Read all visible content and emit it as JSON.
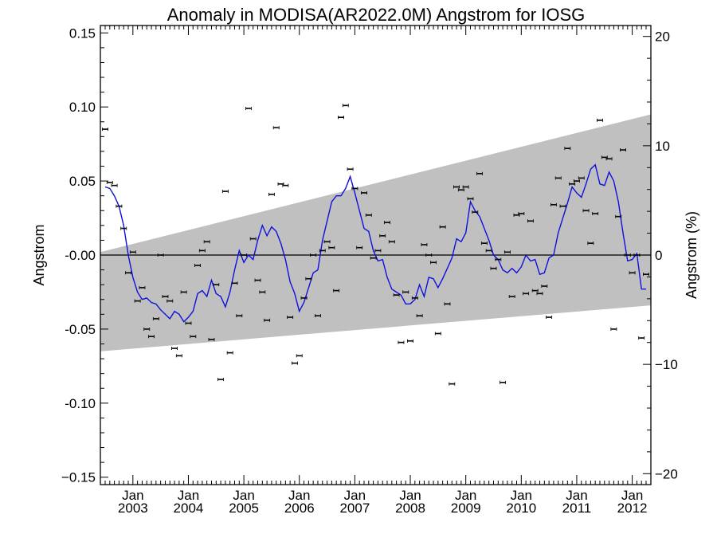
{
  "chart_data": {
    "type": "scatter",
    "title": "Anomaly in MODISA(AR2022.0M) Angstrom for IOSG",
    "ylabel": "Angstrom",
    "ylabel_right": "Angstrom (%)",
    "ylim": [
      -0.155,
      0.155
    ],
    "ylim_right": [
      -21,
      21
    ],
    "yticks": [
      {
        "value": 0.15,
        "label": "0.15"
      },
      {
        "value": 0.1,
        "label": "0.10"
      },
      {
        "value": 0.05,
        "label": "0.05"
      },
      {
        "value": 0.0,
        "label": "-0.00"
      },
      {
        "value": -0.05,
        "label": "-0.05"
      },
      {
        "value": -0.1,
        "label": "-0.10"
      },
      {
        "value": -0.15,
        "label": "−0.15"
      }
    ],
    "yticks_right": [
      {
        "value": 20,
        "label": "20"
      },
      {
        "value": 10,
        "label": "10"
      },
      {
        "value": 0,
        "label": "0"
      },
      {
        "value": -10,
        "label": "−10"
      },
      {
        "value": -20,
        "label": "−20"
      }
    ],
    "xlim": [
      "2002-07",
      "2012-04"
    ],
    "xticks": [
      {
        "month": "Jan",
        "year": "2003"
      },
      {
        "month": "Jan",
        "year": "2004"
      },
      {
        "month": "Jan",
        "year": "2005"
      },
      {
        "month": "Jan",
        "year": "2006"
      },
      {
        "month": "Jan",
        "year": "2007"
      },
      {
        "month": "Jan",
        "year": "2008"
      },
      {
        "month": "Jan",
        "year": "2009"
      },
      {
        "month": "Jan",
        "year": "2010"
      },
      {
        "month": "Jan",
        "year": "2011"
      },
      {
        "month": "Jan",
        "year": "2012"
      }
    ],
    "band": {
      "color": "#c0c0c0",
      "upper": [
        [
          "2002-07",
          0.002
        ],
        [
          "2012-04",
          0.095
        ]
      ],
      "lower": [
        [
          "2002-07",
          -0.065
        ],
        [
          "2012-04",
          -0.034
        ]
      ]
    },
    "zero_line": 0.0,
    "monthly_anomaly": {
      "color": "#000000",
      "points": [
        [
          "2002-07",
          0.085
        ],
        [
          "2002-08",
          0.049
        ],
        [
          "2002-09",
          0.047
        ],
        [
          "2002-10",
          0.033
        ],
        [
          "2002-11",
          0.018
        ],
        [
          "2002-12",
          -0.012
        ],
        [
          "2003-01",
          0.002
        ],
        [
          "2003-02",
          -0.031
        ],
        [
          "2003-03",
          -0.022
        ],
        [
          "2003-04",
          -0.05
        ],
        [
          "2003-05",
          -0.055
        ],
        [
          "2003-06",
          -0.043
        ],
        [
          "2003-07",
          0.0
        ],
        [
          "2003-08",
          -0.028
        ],
        [
          "2003-09",
          -0.031
        ],
        [
          "2003-10",
          -0.063
        ],
        [
          "2003-11",
          -0.068
        ],
        [
          "2003-12",
          -0.025
        ],
        [
          "2004-01",
          -0.046
        ],
        [
          "2004-02",
          -0.055
        ],
        [
          "2004-03",
          -0.007
        ],
        [
          "2004-04",
          0.003
        ],
        [
          "2004-05",
          0.009
        ],
        [
          "2004-06",
          -0.057
        ],
        [
          "2004-07",
          -0.02
        ],
        [
          "2004-08",
          -0.084
        ],
        [
          "2004-09",
          0.043
        ],
        [
          "2004-10",
          -0.066
        ],
        [
          "2004-11",
          -0.019
        ],
        [
          "2004-12",
          -0.041
        ],
        [
          "2005-01",
          0.0
        ],
        [
          "2005-02",
          0.099
        ],
        [
          "2005-03",
          0.011
        ],
        [
          "2005-04",
          -0.017
        ],
        [
          "2005-05",
          -0.025
        ],
        [
          "2005-06",
          -0.044
        ],
        [
          "2005-07",
          0.041
        ],
        [
          "2005-08",
          0.086
        ],
        [
          "2005-09",
          0.048
        ],
        [
          "2005-10",
          0.047
        ],
        [
          "2005-11",
          -0.042
        ],
        [
          "2005-12",
          -0.073
        ],
        [
          "2006-01",
          -0.068
        ],
        [
          "2006-02",
          -0.029
        ],
        [
          "2006-03",
          -0.016
        ],
        [
          "2006-04",
          0.0
        ],
        [
          "2006-05",
          -0.041
        ],
        [
          "2006-06",
          0.003
        ],
        [
          "2006-07",
          0.009
        ],
        [
          "2006-08",
          0.005
        ],
        [
          "2006-09",
          -0.024
        ],
        [
          "2006-10",
          0.093
        ],
        [
          "2006-11",
          0.101
        ],
        [
          "2006-12",
          0.058
        ],
        [
          "2007-01",
          0.045
        ],
        [
          "2007-02",
          0.005
        ],
        [
          "2007-03",
          0.042
        ],
        [
          "2007-04",
          0.027
        ],
        [
          "2007-05",
          -0.002
        ],
        [
          "2007-06",
          0.003
        ],
        [
          "2007-07",
          0.013
        ],
        [
          "2007-08",
          0.022
        ],
        [
          "2007-09",
          0.009
        ],
        [
          "2007-10",
          -0.027
        ],
        [
          "2007-11",
          -0.059
        ],
        [
          "2007-12",
          -0.025
        ],
        [
          "2008-01",
          -0.058
        ],
        [
          "2008-02",
          -0.029
        ],
        [
          "2008-03",
          -0.041
        ],
        [
          "2008-04",
          0.007
        ],
        [
          "2008-05",
          0.0
        ],
        [
          "2008-06",
          -0.005
        ],
        [
          "2008-07",
          -0.053
        ],
        [
          "2008-08",
          0.019
        ],
        [
          "2008-09",
          -0.033
        ],
        [
          "2008-10",
          -0.087
        ],
        [
          "2008-11",
          0.046
        ],
        [
          "2008-12",
          0.044
        ],
        [
          "2009-01",
          0.046
        ],
        [
          "2009-02",
          0.038
        ],
        [
          "2009-03",
          0.029
        ],
        [
          "2009-04",
          0.055
        ],
        [
          "2009-05",
          0.008
        ],
        [
          "2009-06",
          0.003
        ],
        [
          "2009-07",
          -0.009
        ],
        [
          "2009-08",
          -0.003
        ],
        [
          "2009-09",
          -0.086
        ],
        [
          "2009-10",
          0.002
        ],
        [
          "2009-11",
          -0.028
        ],
        [
          "2009-12",
          0.027
        ],
        [
          "2010-01",
          0.028
        ],
        [
          "2010-02",
          -0.026
        ],
        [
          "2010-03",
          0.023
        ],
        [
          "2010-04",
          -0.024
        ],
        [
          "2010-05",
          -0.026
        ],
        [
          "2010-06",
          -0.021
        ],
        [
          "2010-07",
          -0.042
        ],
        [
          "2010-08",
          0.034
        ],
        [
          "2010-09",
          0.052
        ],
        [
          "2010-10",
          0.033
        ],
        [
          "2010-11",
          0.072
        ],
        [
          "2010-12",
          0.048
        ],
        [
          "2011-01",
          0.05
        ],
        [
          "2011-02",
          0.052
        ],
        [
          "2011-03",
          0.03
        ],
        [
          "2011-04",
          0.008
        ],
        [
          "2011-05",
          0.028
        ],
        [
          "2011-06",
          0.091
        ],
        [
          "2011-07",
          0.066
        ],
        [
          "2011-08",
          0.065
        ],
        [
          "2011-09",
          -0.05
        ],
        [
          "2011-10",
          0.026
        ],
        [
          "2011-11",
          0.071
        ],
        [
          "2011-12",
          0.0
        ],
        [
          "2012-01",
          -0.012
        ],
        [
          "2012-02",
          0.0
        ],
        [
          "2012-03",
          -0.056
        ],
        [
          "2012-04",
          -0.013
        ]
      ]
    },
    "smoothed": {
      "color": "#1010dd",
      "points": [
        [
          "2002-07",
          0.046
        ],
        [
          "2002-08",
          0.045
        ],
        [
          "2002-09",
          0.04
        ],
        [
          "2002-10",
          0.033
        ],
        [
          "2002-11",
          0.02
        ],
        [
          "2002-12",
          0.0
        ],
        [
          "2003-01",
          -0.015
        ],
        [
          "2003-02",
          -0.025
        ],
        [
          "2003-03",
          -0.03
        ],
        [
          "2003-04",
          -0.029
        ],
        [
          "2003-05",
          -0.032
        ],
        [
          "2003-06",
          -0.033
        ],
        [
          "2003-07",
          -0.037
        ],
        [
          "2003-08",
          -0.04
        ],
        [
          "2003-09",
          -0.043
        ],
        [
          "2003-10",
          -0.038
        ],
        [
          "2003-11",
          -0.04
        ],
        [
          "2003-12",
          -0.045
        ],
        [
          "2004-01",
          -0.042
        ],
        [
          "2004-02",
          -0.038
        ],
        [
          "2004-03",
          -0.026
        ],
        [
          "2004-04",
          -0.024
        ],
        [
          "2004-05",
          -0.028
        ],
        [
          "2004-06",
          -0.017
        ],
        [
          "2004-07",
          -0.026
        ],
        [
          "2004-08",
          -0.028
        ],
        [
          "2004-09",
          -0.035
        ],
        [
          "2004-10",
          -0.025
        ],
        [
          "2004-11",
          -0.01
        ],
        [
          "2004-12",
          0.003
        ],
        [
          "2005-01",
          -0.005
        ],
        [
          "2005-02",
          0.0
        ],
        [
          "2005-03",
          -0.003
        ],
        [
          "2005-04",
          0.01
        ],
        [
          "2005-05",
          0.02
        ],
        [
          "2005-06",
          0.013
        ],
        [
          "2005-07",
          0.019
        ],
        [
          "2005-08",
          0.016
        ],
        [
          "2005-09",
          0.008
        ],
        [
          "2005-10",
          -0.003
        ],
        [
          "2005-11",
          -0.018
        ],
        [
          "2005-12",
          -0.026
        ],
        [
          "2006-01",
          -0.038
        ],
        [
          "2006-02",
          -0.032
        ],
        [
          "2006-03",
          -0.022
        ],
        [
          "2006-04",
          -0.012
        ],
        [
          "2006-05",
          -0.01
        ],
        [
          "2006-06",
          0.01
        ],
        [
          "2006-07",
          0.023
        ],
        [
          "2006-08",
          0.036
        ],
        [
          "2006-09",
          0.04
        ],
        [
          "2006-10",
          0.04
        ],
        [
          "2006-11",
          0.045
        ],
        [
          "2006-12",
          0.053
        ],
        [
          "2007-01",
          0.042
        ],
        [
          "2007-02",
          0.03
        ],
        [
          "2007-03",
          0.018
        ],
        [
          "2007-04",
          0.016
        ],
        [
          "2007-05",
          0.003
        ],
        [
          "2007-06",
          -0.004
        ],
        [
          "2007-07",
          -0.003
        ],
        [
          "2007-08",
          -0.015
        ],
        [
          "2007-09",
          -0.023
        ],
        [
          "2007-10",
          -0.025
        ],
        [
          "2007-11",
          -0.027
        ],
        [
          "2007-12",
          -0.033
        ],
        [
          "2008-01",
          -0.033
        ],
        [
          "2008-02",
          -0.03
        ],
        [
          "2008-03",
          -0.02
        ],
        [
          "2008-04",
          -0.028
        ],
        [
          "2008-05",
          -0.015
        ],
        [
          "2008-06",
          -0.016
        ],
        [
          "2008-07",
          -0.022
        ],
        [
          "2008-08",
          -0.016
        ],
        [
          "2008-09",
          -0.009
        ],
        [
          "2008-10",
          -0.002
        ],
        [
          "2008-11",
          0.011
        ],
        [
          "2008-12",
          0.009
        ],
        [
          "2009-01",
          0.015
        ],
        [
          "2009-02",
          0.036
        ],
        [
          "2009-03",
          0.03
        ],
        [
          "2009-04",
          0.026
        ],
        [
          "2009-05",
          0.018
        ],
        [
          "2009-06",
          0.01
        ],
        [
          "2009-07",
          0.0
        ],
        [
          "2009-08",
          -0.003
        ],
        [
          "2009-09",
          -0.01
        ],
        [
          "2009-10",
          -0.012
        ],
        [
          "2009-11",
          -0.009
        ],
        [
          "2009-12",
          -0.012
        ],
        [
          "2010-01",
          -0.008
        ],
        [
          "2010-02",
          0.0
        ],
        [
          "2010-03",
          -0.004
        ],
        [
          "2010-04",
          -0.003
        ],
        [
          "2010-05",
          -0.013
        ],
        [
          "2010-06",
          -0.012
        ],
        [
          "2010-07",
          -0.002
        ],
        [
          "2010-08",
          0.0
        ],
        [
          "2010-09",
          0.015
        ],
        [
          "2010-10",
          0.025
        ],
        [
          "2010-11",
          0.035
        ],
        [
          "2010-12",
          0.046
        ],
        [
          "2011-01",
          0.042
        ],
        [
          "2011-02",
          0.039
        ],
        [
          "2011-03",
          0.048
        ],
        [
          "2011-04",
          0.058
        ],
        [
          "2011-05",
          0.061
        ],
        [
          "2011-06",
          0.048
        ],
        [
          "2011-07",
          0.047
        ],
        [
          "2011-08",
          0.056
        ],
        [
          "2011-09",
          0.05
        ],
        [
          "2011-10",
          0.036
        ],
        [
          "2011-11",
          0.015
        ],
        [
          "2011-12",
          -0.004
        ],
        [
          "2012-01",
          -0.003
        ],
        [
          "2012-02",
          0.001
        ],
        [
          "2012-03",
          -0.023
        ],
        [
          "2012-04",
          -0.023
        ]
      ]
    }
  }
}
